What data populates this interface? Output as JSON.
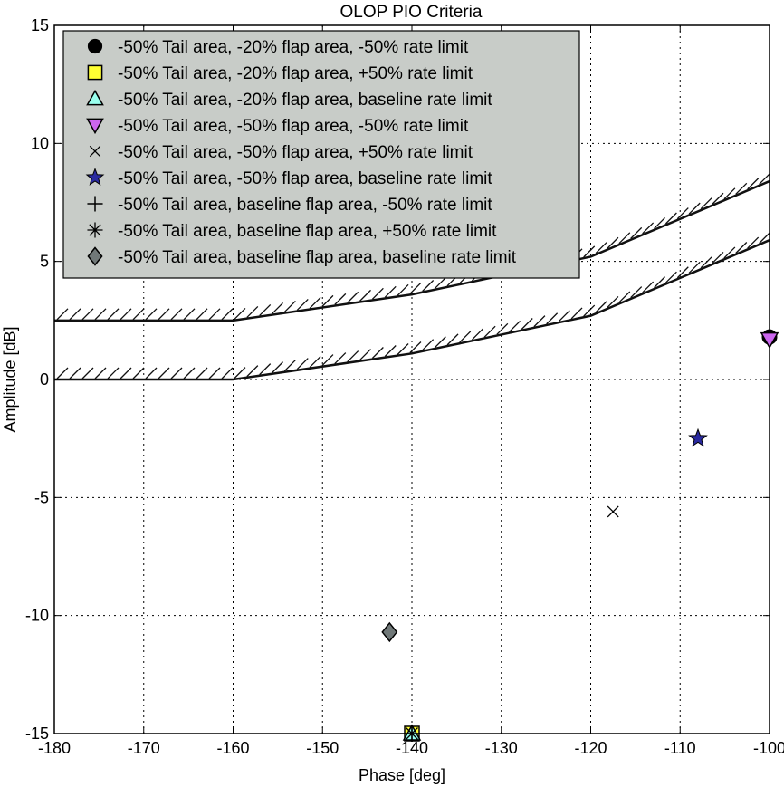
{
  "chart_data": {
    "type": "scatter",
    "title": "OLOP PIO Criteria",
    "xlabel": "Phase [deg]",
    "ylabel": "Amplitude [dB]",
    "xlim": [
      -180,
      -100
    ],
    "ylim": [
      -15,
      15
    ],
    "xticks": [
      -180,
      -170,
      -160,
      -150,
      -140,
      -130,
      -120,
      -110,
      -100
    ],
    "yticks": [
      -15,
      -10,
      -5,
      0,
      5,
      10,
      15
    ],
    "grid": true,
    "legend_position": "top-left",
    "boundaries": [
      {
        "points": [
          [
            -180,
            2.5
          ],
          [
            -160,
            2.5
          ],
          [
            -140,
            3.6
          ],
          [
            -120,
            5.2
          ],
          [
            -100,
            8.4
          ]
        ]
      },
      {
        "points": [
          [
            -180,
            0
          ],
          [
            -160,
            0
          ],
          [
            -140,
            1.1
          ],
          [
            -120,
            2.7
          ],
          [
            -100,
            5.9
          ]
        ]
      }
    ],
    "series": [
      {
        "name": "-50% Tail area, -20% flap area, -50% rate limit",
        "marker": "circle",
        "fill": "#000000",
        "x": [
          -100
        ],
        "y": [
          1.8
        ]
      },
      {
        "name": "-50% Tail area, -20% flap area, +50% rate limit",
        "marker": "square",
        "fill": "#ffff33",
        "x": [
          -140
        ],
        "y": [
          -15
        ]
      },
      {
        "name": "-50% Tail area, -20% flap area, baseline rate limit",
        "marker": "triangle-up",
        "fill": "#99ffee",
        "x": [
          -140
        ],
        "y": [
          -15
        ]
      },
      {
        "name": "-50% Tail area, -50% flap area, -50% rate limit",
        "marker": "triangle-down",
        "fill": "#cc66ee",
        "x": [
          -100
        ],
        "y": [
          1.7
        ]
      },
      {
        "name": "-50% Tail area, -50% flap area, +50% rate limit",
        "marker": "x",
        "fill": "none",
        "x": [
          -117.5
        ],
        "y": [
          -5.6
        ]
      },
      {
        "name": "-50% Tail area, -50% flap area, baseline rate limit",
        "marker": "star",
        "fill": "#2a2aa0",
        "x": [
          -108
        ],
        "y": [
          -2.5
        ]
      },
      {
        "name": "-50% Tail area, baseline flap area, -50% rate limit",
        "marker": "plus",
        "fill": "none",
        "x": [
          -140
        ],
        "y": [
          -15
        ]
      },
      {
        "name": "-50% Tail area, baseline flap area, +50% rate limit",
        "marker": "asterisk",
        "fill": "none",
        "x": [
          -140
        ],
        "y": [
          -15
        ]
      },
      {
        "name": "-50% Tail area, baseline flap area, baseline rate limit",
        "marker": "diamond",
        "fill": "#707878",
        "x": [
          -142.5
        ],
        "y": [
          -10.7
        ]
      }
    ]
  },
  "colors": {
    "legend_background": "#c8ccc8",
    "grid": "#000000",
    "boundary": "#111111"
  }
}
